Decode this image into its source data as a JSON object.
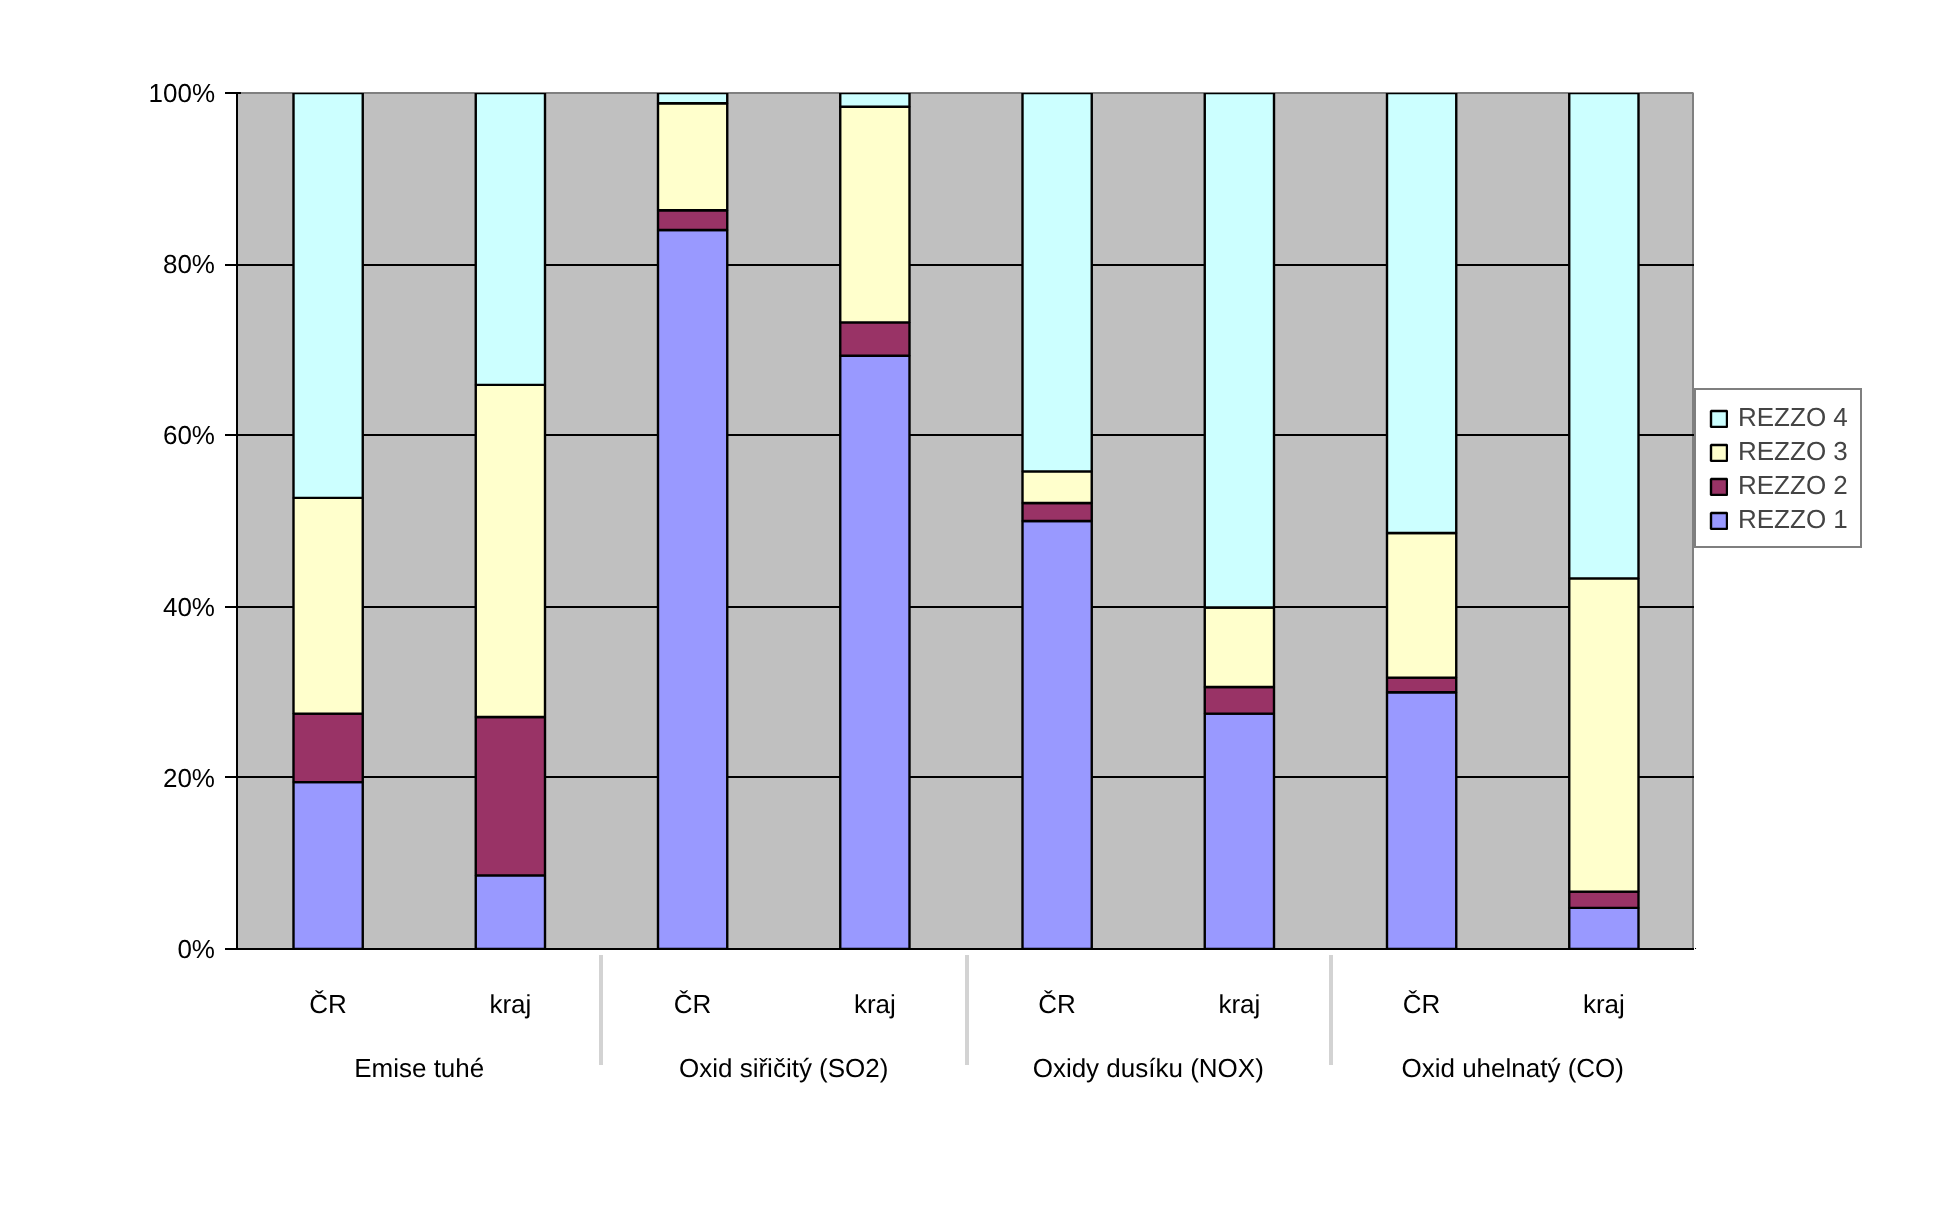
{
  "chart_data": {
    "type": "bar",
    "stacked": true,
    "categories": [
      "ČR",
      "kraj",
      "ČR",
      "kraj",
      "ČR",
      "kraj",
      "ČR",
      "kraj"
    ],
    "annotations": [
      "Emise tuhé",
      "Oxid siřičitý (SO2)",
      "Oxidy dusíku (NOX)",
      "Oxid uhelnatý (CO)"
    ],
    "series": [
      {
        "name": "REZZO 1",
        "color": "#9999ff",
        "values": [
          19.5,
          8.6,
          84.0,
          69.3,
          50.0,
          27.5,
          30.0,
          4.8
        ]
      },
      {
        "name": "REZZO 2",
        "color": "#993366",
        "values": [
          8.0,
          18.5,
          2.3,
          3.9,
          2.1,
          3.1,
          1.7,
          1.9
        ]
      },
      {
        "name": "REZZO 3",
        "color": "#ffffcc",
        "values": [
          25.2,
          38.8,
          12.5,
          25.2,
          3.7,
          9.3,
          16.9,
          36.6
        ]
      },
      {
        "name": "REZZO 4",
        "color": "#ccffff",
        "values": [
          47.3,
          34.1,
          1.2,
          1.6,
          44.2,
          60.1,
          51.4,
          56.7
        ]
      }
    ],
    "ylim": [
      0,
      100
    ],
    "yticks": [
      {
        "value": 0,
        "label": "0%"
      },
      {
        "value": 20,
        "label": "20%"
      },
      {
        "value": 40,
        "label": "40%"
      },
      {
        "value": 60,
        "label": "60%"
      },
      {
        "value": 80,
        "label": "80%"
      },
      {
        "value": 100,
        "label": "100%"
      }
    ],
    "grid": "y",
    "legend": "right"
  }
}
